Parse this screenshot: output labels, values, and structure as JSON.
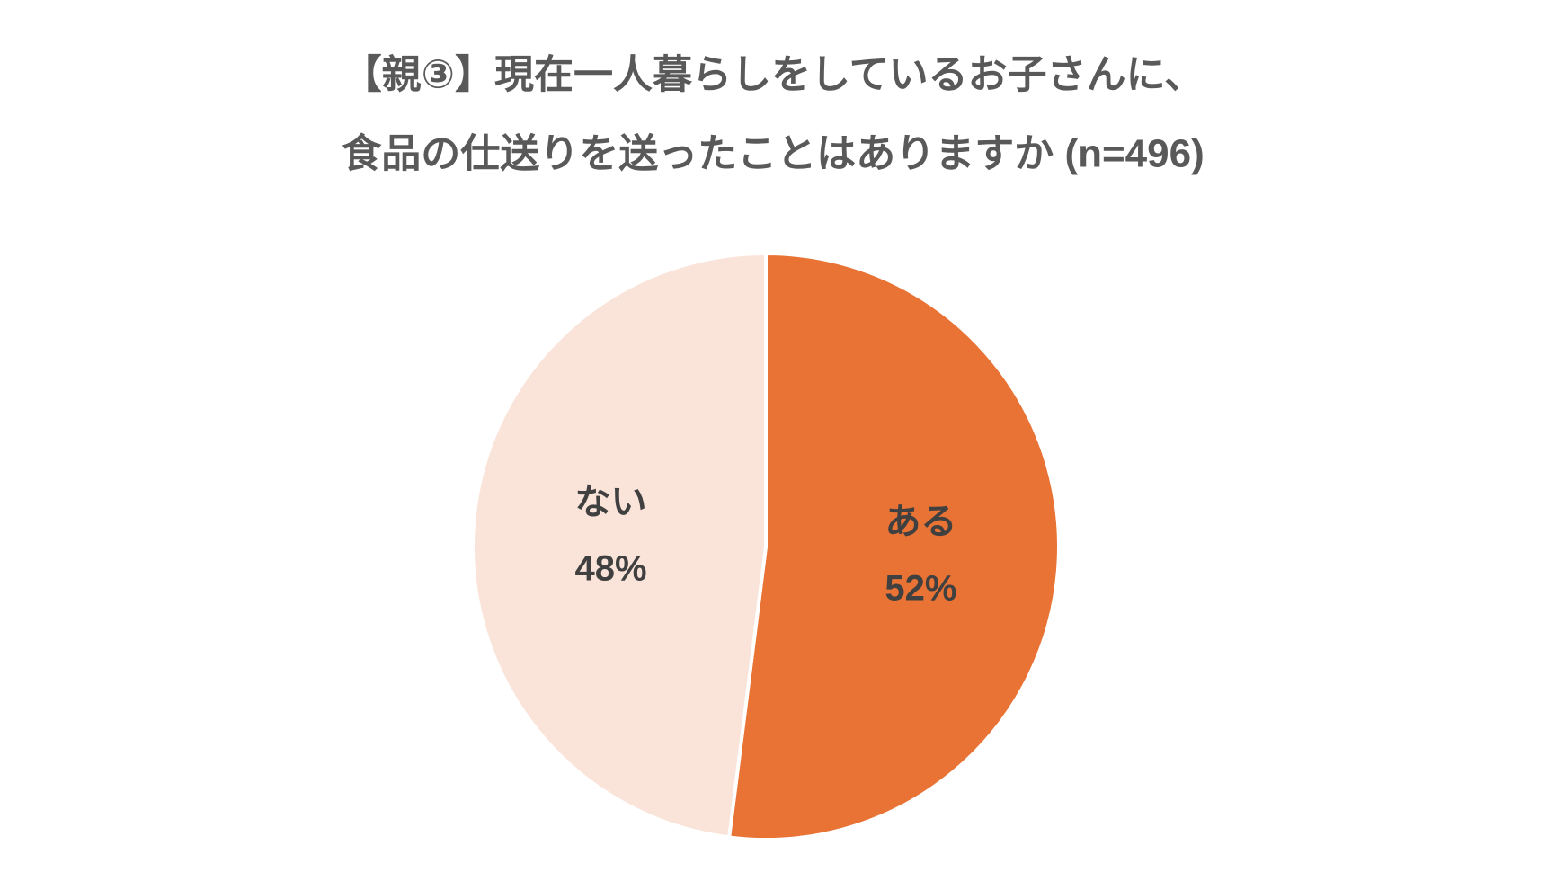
{
  "chart_data": {
    "type": "pie",
    "title": [
      "【親③】現在一人暮らしをしているお子さんに、",
      "食品の仕送りを送ったことはありますか (n=496)"
    ],
    "categories": [
      "ある",
      "ない"
    ],
    "values": [
      52,
      48
    ],
    "value_labels": [
      "52%",
      "48%"
    ],
    "colors": [
      "#e87334",
      "#fae3d8"
    ]
  }
}
